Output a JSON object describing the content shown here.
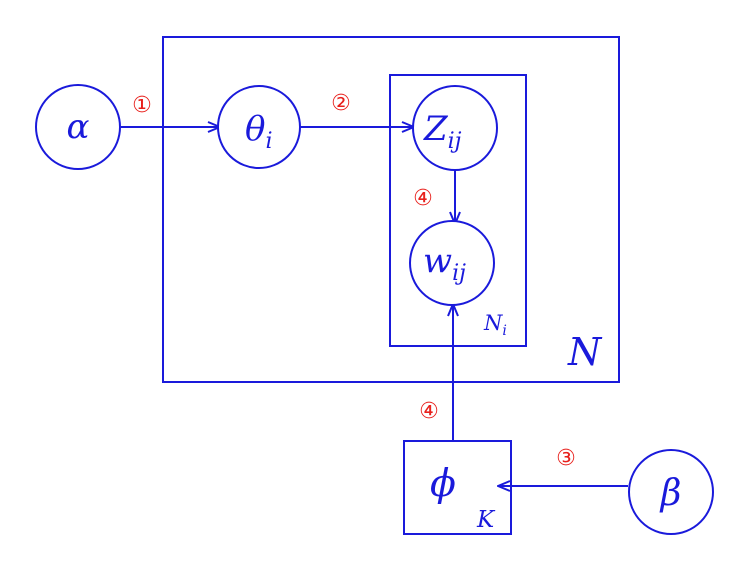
{
  "colors": {
    "graph": "#1a1adb",
    "step": "#e8201c"
  },
  "nodes": {
    "alpha": {
      "symbol": "α"
    },
    "theta": {
      "symbol": "θ",
      "sub": "i"
    },
    "z": {
      "symbol": "Z",
      "sub": "ij"
    },
    "w": {
      "symbol": "w",
      "sub": "ij"
    },
    "phi": {
      "symbol": "ϕ"
    },
    "beta": {
      "symbol": "β"
    }
  },
  "plates": {
    "outer": {
      "label": "N"
    },
    "inner": {
      "label": "N",
      "sub": "i"
    },
    "topic": {
      "label": "K"
    }
  },
  "steps": {
    "alpha_theta": "①",
    "theta_z": "②",
    "z_w": "④",
    "phi_w": "④",
    "beta_phi": "③"
  }
}
